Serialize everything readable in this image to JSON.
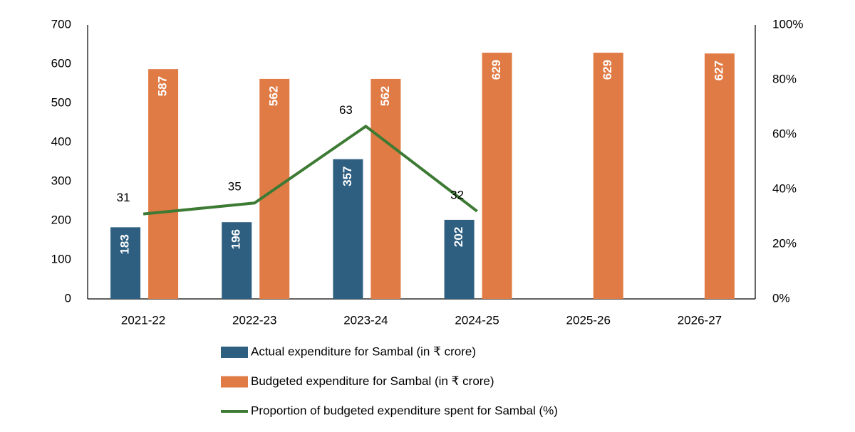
{
  "chart_data": {
    "type": "bar-line",
    "categories": [
      "2021-22",
      "2022-23",
      "2023-24",
      "2024-25",
      "2025-26",
      "2026-27"
    ],
    "series": [
      {
        "name": "Actual expenditure for Sambal (in ₹ crore)",
        "type": "bar",
        "color": "#2e5f80",
        "values": [
          183,
          196,
          357,
          202,
          null,
          null
        ]
      },
      {
        "name": "Budgeted expenditure for Sambal (in ₹ crore)",
        "type": "bar",
        "color": "#e07b45",
        "values": [
          587,
          562,
          562,
          629,
          629,
          627
        ]
      },
      {
        "name": "Proportion of budgeted expenditure spent for Sambal (%)",
        "type": "line",
        "axis": "y2",
        "color": "#3d7a34",
        "values": [
          31,
          35,
          63,
          32,
          null,
          null
        ]
      }
    ],
    "ylim": [
      0,
      700
    ],
    "yticks": [
      0,
      100,
      200,
      300,
      400,
      500,
      600,
      700
    ],
    "y2lim": [
      0,
      100
    ],
    "y2ticks": [
      {
        "value": 0,
        "label": "0%"
      },
      {
        "value": 20,
        "label": "20%"
      },
      {
        "value": 40,
        "label": "40%"
      },
      {
        "value": 60,
        "label": "60%"
      },
      {
        "value": 80,
        "label": "80%"
      },
      {
        "value": 100,
        "label": "100%"
      }
    ],
    "grid": false
  }
}
